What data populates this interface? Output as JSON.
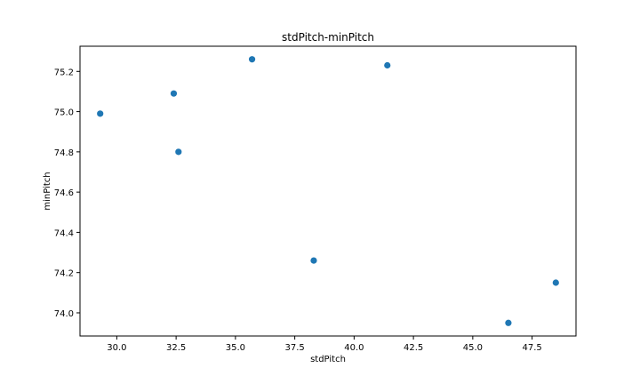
{
  "chart_data": {
    "type": "scatter",
    "title": "stdPitch-minPitch",
    "xlabel": "stdPitch",
    "ylabel": "minPitch",
    "xlim": [
      28.45,
      49.35
    ],
    "ylim": [
      73.885,
      75.325
    ],
    "xticks": [
      30.0,
      32.5,
      35.0,
      37.5,
      40.0,
      42.5,
      45.0,
      47.5
    ],
    "yticks": [
      74.0,
      74.2,
      74.4,
      74.6,
      74.8,
      75.0,
      75.2
    ],
    "xtick_labels": [
      "30.0",
      "32.5",
      "35.0",
      "37.5",
      "40.0",
      "42.5",
      "45.0",
      "47.5"
    ],
    "ytick_labels": [
      "74.0",
      "74.2",
      "74.4",
      "74.6",
      "74.8",
      "75.0",
      "75.2"
    ],
    "grid": false,
    "series": [
      {
        "color": "#1f77b4",
        "points": [
          {
            "x": 29.3,
            "y": 74.99
          },
          {
            "x": 32.4,
            "y": 75.09
          },
          {
            "x": 32.6,
            "y": 74.8
          },
          {
            "x": 35.7,
            "y": 75.26
          },
          {
            "x": 38.3,
            "y": 74.26
          },
          {
            "x": 41.4,
            "y": 75.23
          },
          {
            "x": 46.5,
            "y": 73.95
          },
          {
            "x": 48.5,
            "y": 74.15
          }
        ]
      }
    ]
  }
}
